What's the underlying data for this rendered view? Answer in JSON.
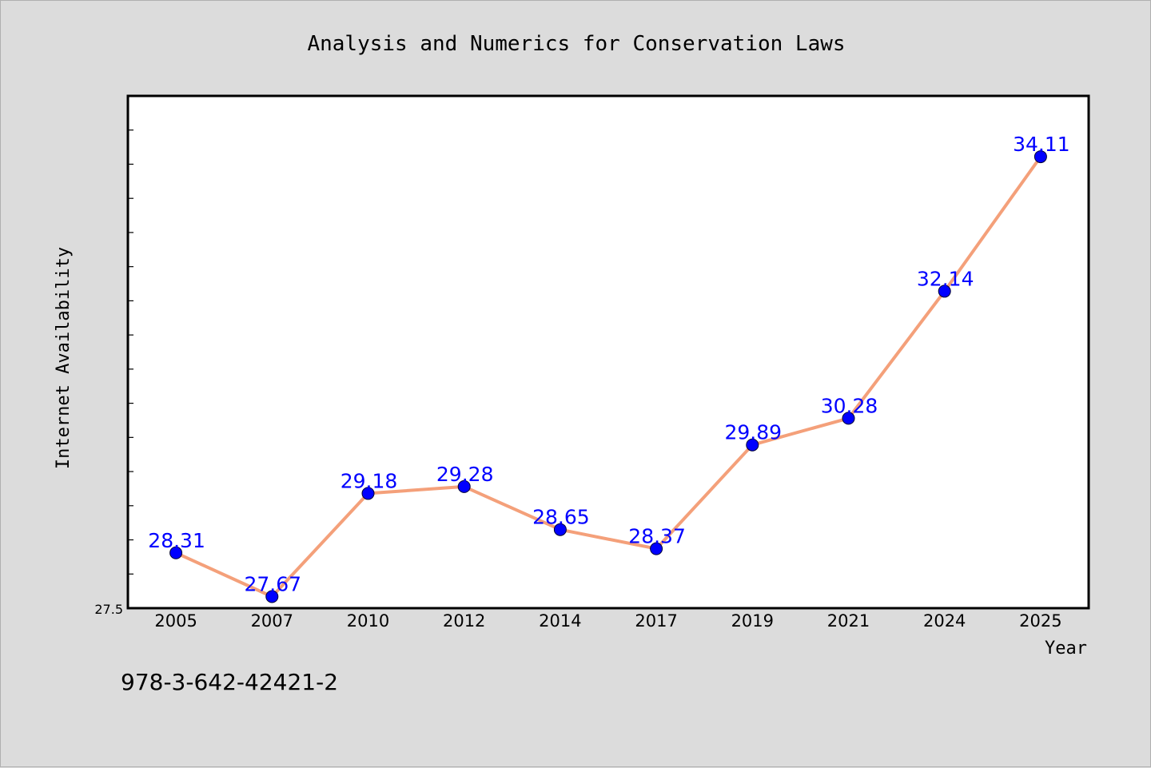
{
  "footer": {
    "isbn": "978-3-642-42421-2"
  },
  "colors": {
    "line": "#f4a07a",
    "marker": "#0000ff",
    "label": "#0000ff",
    "plot_bg": "#ffffff",
    "page_bg": "#dcdcdc"
  },
  "chart_data": {
    "type": "line",
    "title": "Analysis and Numerics for Conservation Laws",
    "xlabel": "Year",
    "ylabel": "Internet Availability",
    "categories": [
      "2005",
      "2007",
      "2010",
      "2012",
      "2014",
      "2017",
      "2019",
      "2021",
      "2024",
      "2025"
    ],
    "series": [
      {
        "values": [
          28.31,
          27.67,
          29.18,
          29.28,
          28.65,
          28.37,
          29.89,
          30.28,
          32.14,
          34.11
        ]
      }
    ],
    "data_labels": [
      "28.31",
      "27.67",
      "29.18",
      "29.28",
      "28.65",
      "28.37",
      "29.89",
      "30.28",
      "32.14",
      "34.11"
    ],
    "ylim": [
      27.5,
      35.0
    ],
    "y_tick_labels": [
      "27.5"
    ],
    "grid": false,
    "legend": "none"
  }
}
